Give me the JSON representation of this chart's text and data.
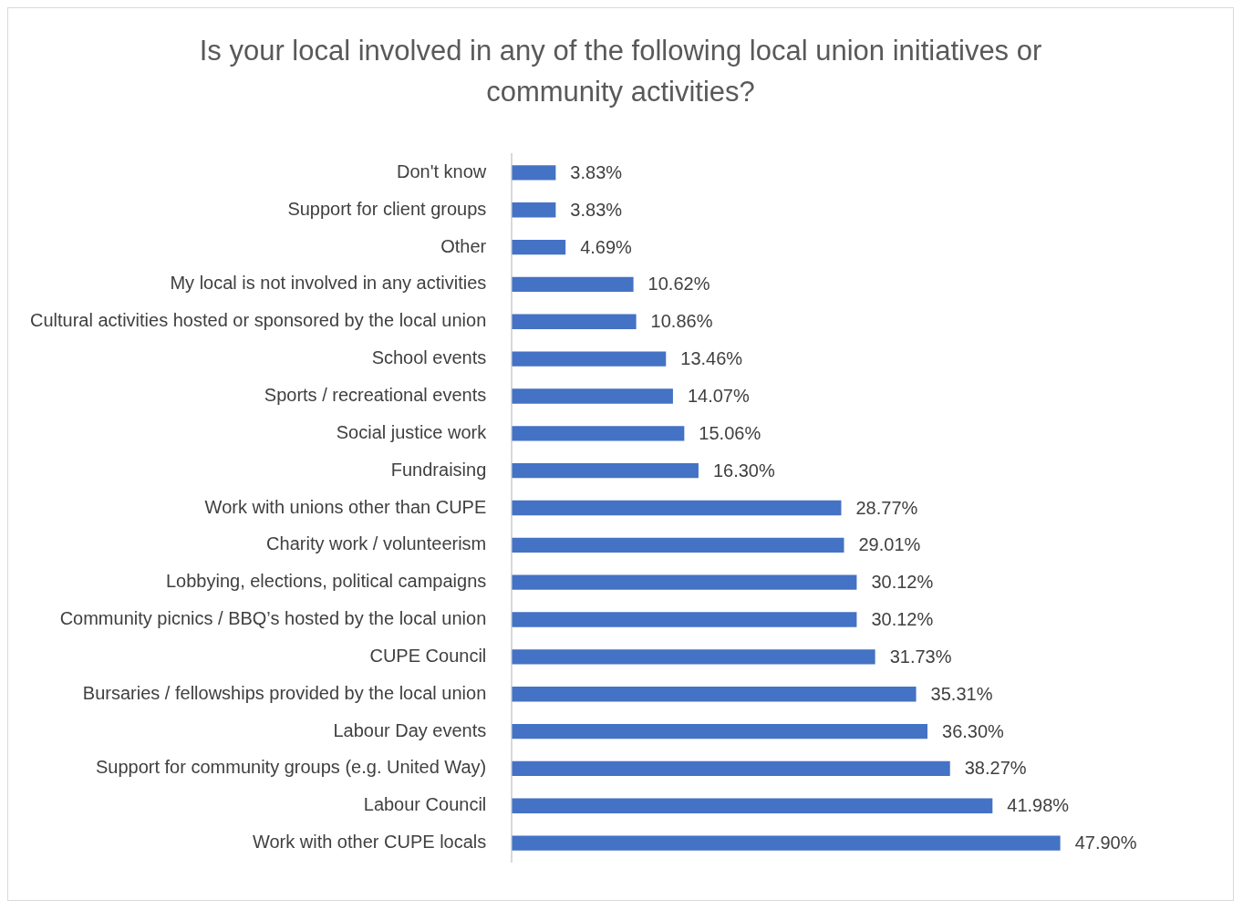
{
  "chart_data": {
    "type": "bar",
    "orientation": "horizontal",
    "title": "Is your local involved in any of the following local union initiatives or community activities?",
    "categories": [
      "Don't know",
      "Support for client groups",
      "Other",
      "My local is not involved in any activities",
      "Cultural activities hosted or sponsored by the local union",
      "School events",
      "Sports / recreational events",
      "Social justice work",
      "Fundraising",
      "Work with unions other than CUPE",
      "Charity work / volunteerism",
      "Lobbying, elections, political campaigns",
      "Community picnics / BBQ’s hosted by the local union",
      "CUPE Council",
      "Bursaries / fellowships provided by the local union",
      "Labour Day events",
      "Support for community groups (e.g. United Way)",
      "Labour Council",
      "Work with other CUPE locals"
    ],
    "values": [
      3.83,
      3.83,
      4.69,
      10.62,
      10.86,
      13.46,
      14.07,
      15.06,
      16.3,
      28.77,
      29.01,
      30.12,
      30.12,
      31.73,
      35.31,
      36.3,
      38.27,
      41.98,
      47.9
    ],
    "value_labels": [
      "3.83%",
      "3.83%",
      "4.69%",
      "10.62%",
      "10.86%",
      "13.46%",
      "14.07%",
      "15.06%",
      "16.30%",
      "28.77%",
      "29.01%",
      "30.12%",
      "30.12%",
      "31.73%",
      "35.31%",
      "36.30%",
      "38.27%",
      "41.98%",
      "47.90%"
    ],
    "color": "#4472c4",
    "legend": false
  }
}
